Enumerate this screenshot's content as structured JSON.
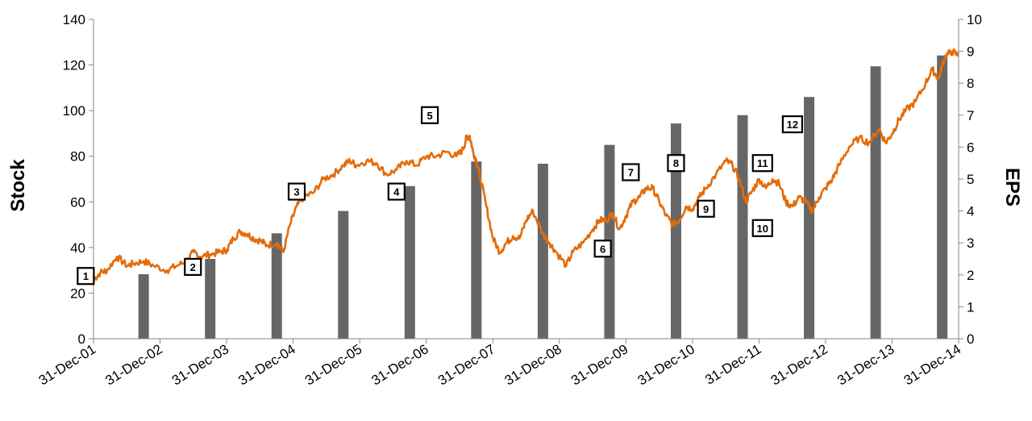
{
  "chart_data": {
    "type": "bar+line",
    "y_left": {
      "label": "Stock",
      "range": [
        0,
        140
      ],
      "ticks": [
        "0",
        "20",
        "40",
        "60",
        "80",
        "100",
        "120",
        "140"
      ]
    },
    "y_right": {
      "label": "EPS",
      "range": [
        0,
        10
      ],
      "ticks": [
        "0",
        "1",
        "2",
        "3",
        "4",
        "5",
        "6",
        "7",
        "8",
        "9",
        "10"
      ]
    },
    "x_ticks": [
      "31-Dec-01",
      "31-Dec-02",
      "31-Dec-03",
      "31-Dec-04",
      "31-Dec-05",
      "31-Dec-06",
      "31-Dec-07",
      "31-Dec-08",
      "31-Dec-09",
      "31-Dec-10",
      "31-Dec-11",
      "31-Dec-12",
      "31-Dec-13",
      "31-Dec-14"
    ],
    "x_range": [
      2001.997,
      2014.997
    ],
    "bars_eps": {
      "x": [
        2002.75,
        2003.75,
        2004.75,
        2005.75,
        2006.75,
        2007.75,
        2008.75,
        2009.75,
        2010.75,
        2011.75,
        2012.75,
        2013.75,
        2014.75
      ],
      "values": [
        2.02,
        2.5,
        3.3,
        4.0,
        4.78,
        5.55,
        5.48,
        6.07,
        6.74,
        7.0,
        7.57,
        8.53,
        8.87
      ]
    },
    "line_stock": {
      "x": [
        2002.0,
        2002.1,
        2002.2,
        2002.35,
        2002.5,
        2002.6,
        2002.75,
        2002.9,
        2003.1,
        2003.25,
        2003.4,
        2003.5,
        2003.6,
        2003.75,
        2003.9,
        2004.0,
        2004.1,
        2004.2,
        2004.3,
        2004.4,
        2004.5,
        2004.6,
        2004.75,
        2004.85,
        2004.95,
        2005.05,
        2005.15,
        2005.3,
        2005.45,
        2005.6,
        2005.75,
        2005.85,
        2005.95,
        2006.1,
        2006.25,
        2006.4,
        2006.55,
        2006.7,
        2006.85,
        2007.0,
        2007.15,
        2007.3,
        2007.45,
        2007.55,
        2007.6,
        2007.65,
        2007.7,
        2007.75,
        2007.8,
        2007.9,
        2008.0,
        2008.1,
        2008.2,
        2008.3,
        2008.4,
        2008.5,
        2008.6,
        2008.75,
        2008.85,
        2008.95,
        2009.1,
        2009.2,
        2009.35,
        2009.5,
        2009.6,
        2009.7,
        2009.8,
        2009.9,
        2010.0,
        2010.1,
        2010.2,
        2010.3,
        2010.4,
        2010.5,
        2010.6,
        2010.7,
        2010.8,
        2010.9,
        2011.0,
        2011.1,
        2011.2,
        2011.35,
        2011.5,
        2011.6,
        2011.7,
        2011.8,
        2011.9,
        2012.0,
        2012.1,
        2012.2,
        2012.3,
        2012.4,
        2012.5,
        2012.6,
        2012.7,
        2012.8,
        2012.9,
        2013.0,
        2013.1,
        2013.2,
        2013.35,
        2013.5,
        2013.65,
        2013.8,
        2013.9,
        2014.0,
        2014.1,
        2014.2,
        2014.35,
        2014.5,
        2014.6,
        2014.7,
        2014.75,
        2014.8,
        2014.9,
        2014.997
      ],
      "values": [
        26,
        29,
        30,
        36,
        32,
        33,
        34,
        32,
        30,
        32,
        34,
        38,
        36,
        37,
        38,
        39,
        44,
        47,
        46,
        44,
        43,
        41,
        42,
        38,
        50,
        58,
        62,
        64,
        70,
        72,
        76,
        78,
        76,
        78,
        77,
        72,
        74,
        78,
        76,
        80,
        80,
        82,
        80,
        83,
        88,
        89,
        82,
        78,
        72,
        58,
        44,
        38,
        42,
        45,
        44,
        52,
        56,
        46,
        42,
        38,
        32,
        38,
        42,
        48,
        52,
        52,
        55,
        48,
        54,
        60,
        62,
        66,
        66,
        60,
        54,
        50,
        52,
        58,
        57,
        62,
        66,
        72,
        78,
        76,
        70,
        60,
        65,
        70,
        66,
        70,
        68,
        60,
        58,
        62,
        60,
        56,
        62,
        66,
        70,
        76,
        84,
        88,
        86,
        92,
        86,
        90,
        96,
        100,
        104,
        112,
        118,
        114,
        120,
        124,
        126,
        124
      ]
    },
    "markers": [
      {
        "label": "1",
        "x": 2001.88,
        "y": 27.5
      },
      {
        "label": "2",
        "x": 2003.49,
        "y": 31.5
      },
      {
        "label": "3",
        "x": 2005.05,
        "y": 64.5
      },
      {
        "label": "4",
        "x": 2006.55,
        "y": 64.5
      },
      {
        "label": "5",
        "x": 2007.05,
        "y": 98
      },
      {
        "label": "6",
        "x": 2009.65,
        "y": 39.5
      },
      {
        "label": "7",
        "x": 2010.07,
        "y": 73
      },
      {
        "label": "8",
        "x": 2010.75,
        "y": 77
      },
      {
        "label": "9",
        "x": 2011.2,
        "y": 57
      },
      {
        "label": "10",
        "x": 2012.05,
        "y": 48.5
      },
      {
        "label": "11",
        "x": 2012.05,
        "y": 77
      },
      {
        "label": "12",
        "x": 2012.5,
        "y": 94
      }
    ],
    "colors": {
      "bars": "#666666",
      "line": "#e46c0a",
      "axis": "#868686"
    },
    "grid": false,
    "legend": "none"
  }
}
